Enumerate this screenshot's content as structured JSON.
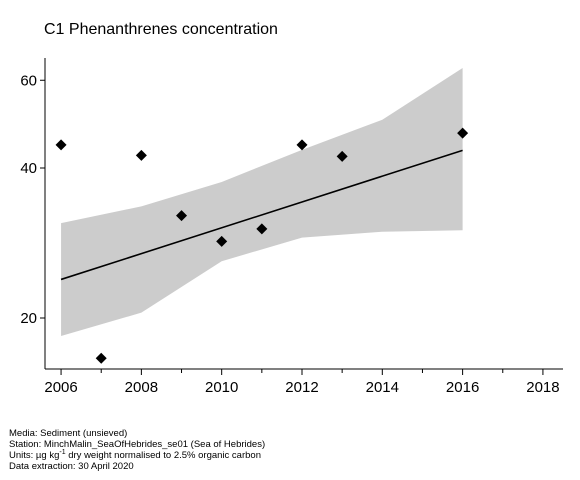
{
  "chart_data": {
    "type": "scatter",
    "title": "C1 Phenanthrenes concentration",
    "xlabel": "",
    "ylabel": "",
    "y_scale": "log",
    "xlim": [
      2005.6,
      2018.5
    ],
    "ylim": [
      15.8,
      66.5
    ],
    "x_ticks": [
      2006,
      2008,
      2010,
      2012,
      2014,
      2016,
      2018
    ],
    "x_minor_ticks": [
      2007,
      2009,
      2011,
      2013,
      2015,
      2017
    ],
    "y_ticks": [
      20,
      40,
      60
    ],
    "points": {
      "x": [
        2006,
        2007,
        2008,
        2009,
        2010,
        2011,
        2012,
        2013,
        2016
      ],
      "y": [
        44.5,
        16.6,
        42.4,
        32.1,
        28.5,
        30.2,
        44.5,
        42.2,
        47.0
      ]
    },
    "trend": {
      "x": [
        2006,
        2016
      ],
      "y": [
        23.9,
        43.4
      ]
    },
    "confidence_band": {
      "x": [
        2006,
        2008,
        2010,
        2012,
        2014,
        2016
      ],
      "lower": [
        18.4,
        20.5,
        26.0,
        29.0,
        29.8,
        30.0
      ],
      "upper": [
        31.0,
        33.5,
        37.5,
        43.5,
        50.0,
        63.5
      ]
    },
    "colors": {
      "points": "#000000",
      "trend": "#000000",
      "band": "#cccccc",
      "axis": "#000000"
    }
  },
  "footer": {
    "media": "Media: Sediment (unsieved)",
    "station": "Station: MinchMalin_SeaOfHebrides_se01 (Sea of Hebrides)",
    "units_prefix": "Units: µg kg",
    "units_exp": "-1",
    "units_suffix": " dry weight normalised to 2.5% organic carbon",
    "extraction": "Data extraction: 30 April 2020"
  }
}
